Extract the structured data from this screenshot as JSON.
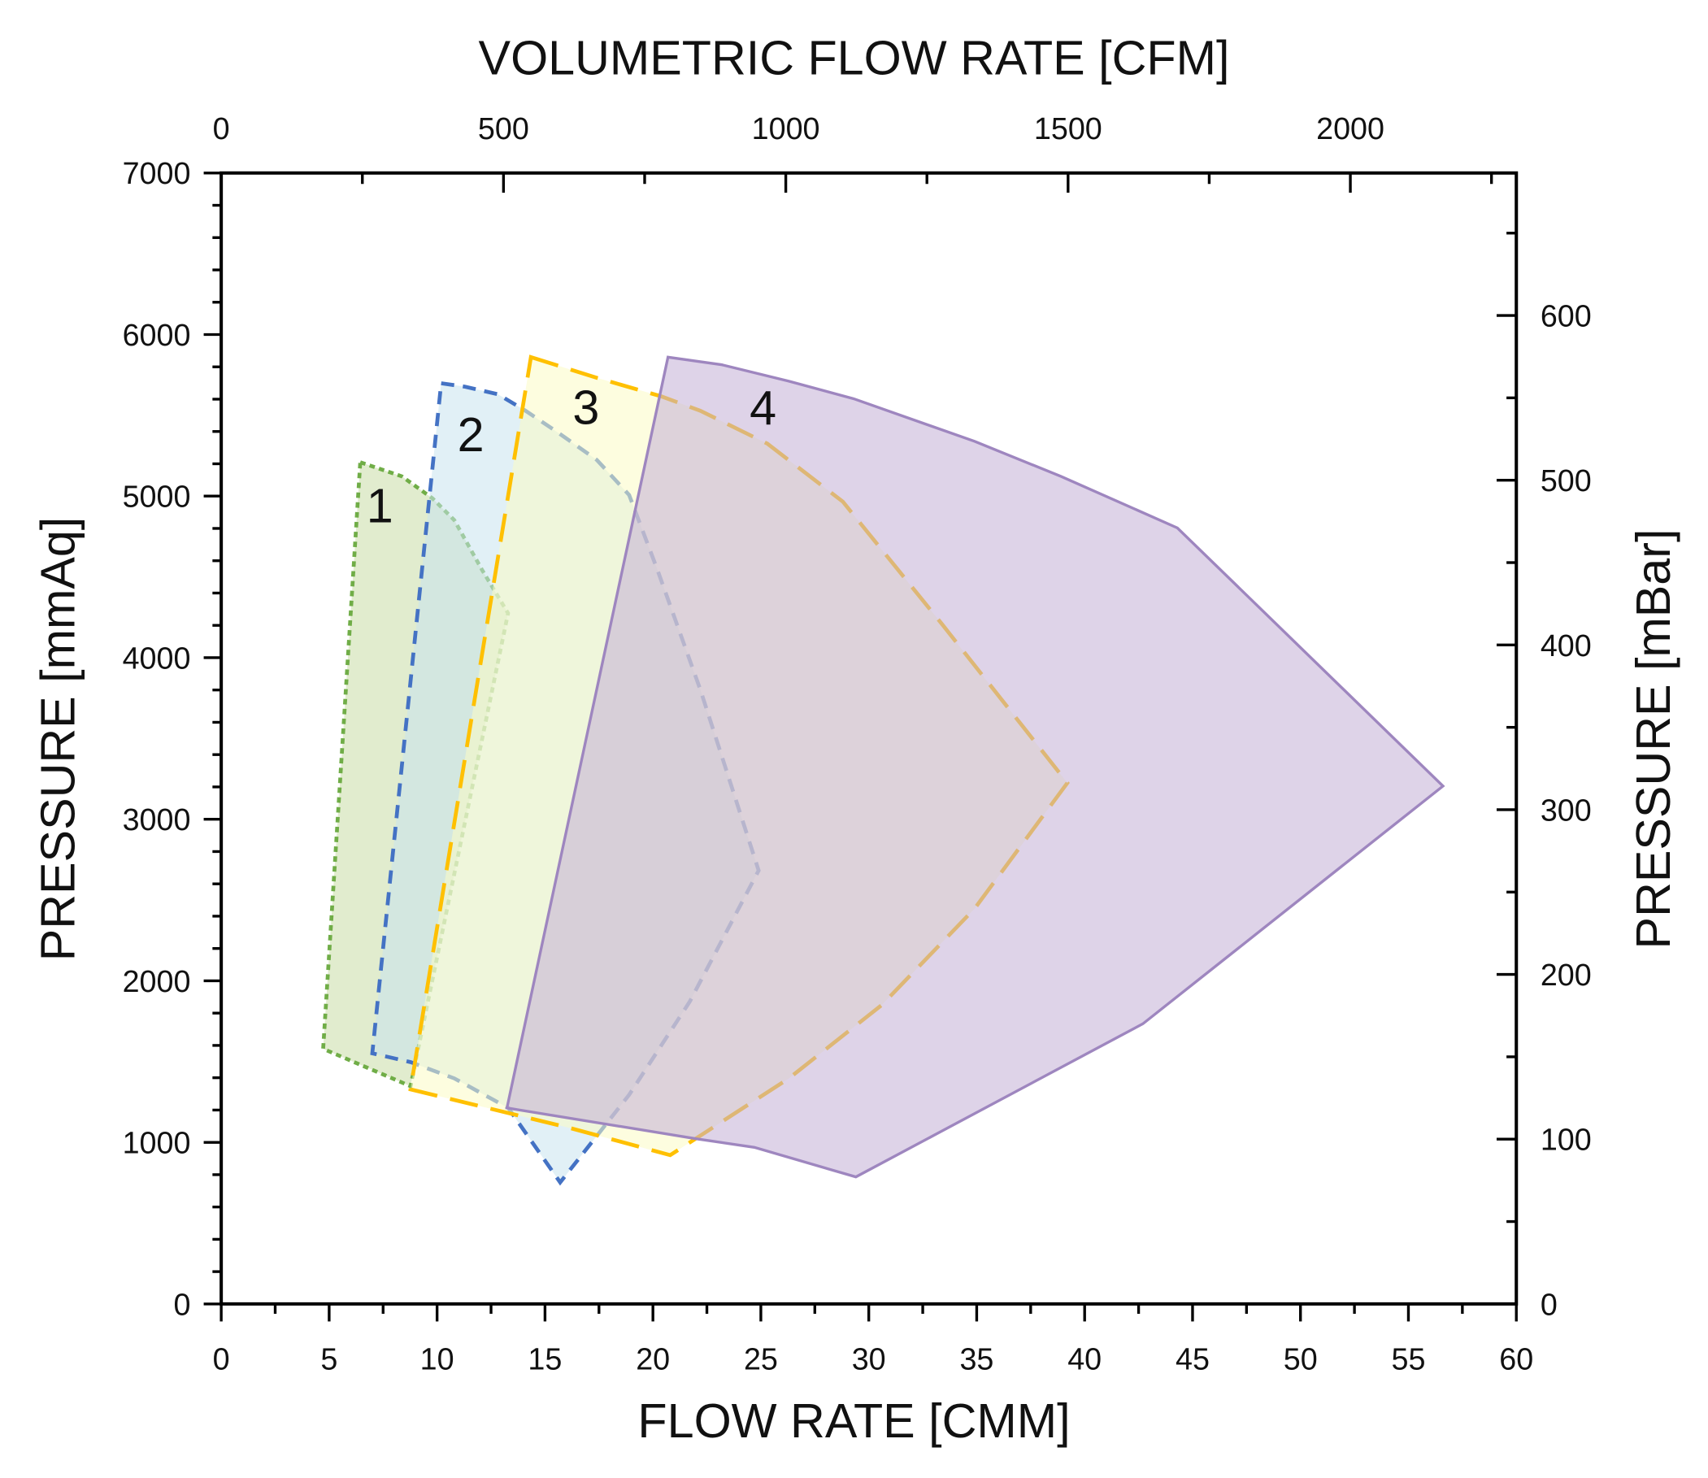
{
  "chart_data": {
    "type": "area",
    "title": "",
    "xlabel": "FLOW RATE [CMM]",
    "ylabel": "PRESSURE [mmAq]",
    "x2label": "VOLUMETRIC FLOW RATE [CFM]",
    "y2label": "PRESSURE [mBar]",
    "xlim": [
      0,
      60
    ],
    "ylim": [
      0,
      7000
    ],
    "x2lim": [
      0,
      2294
    ],
    "y2lim": [
      0,
      686.5
    ],
    "xticks": [
      "0",
      "5",
      "10",
      "15",
      "20",
      "25",
      "30",
      "35",
      "40",
      "45",
      "50",
      "55",
      "60"
    ],
    "yticks": [
      "0",
      "1000",
      "2000",
      "3000",
      "4000",
      "5000",
      "6000",
      "7000"
    ],
    "x2ticks": [
      "0",
      "500",
      "1000",
      "1500",
      "2000"
    ],
    "y2ticks": [
      "0",
      "100",
      "200",
      "300",
      "400",
      "500",
      "600"
    ],
    "grid": false,
    "series": [
      {
        "name": "1",
        "stroke": "#70ad47",
        "fill": "#c9dca6",
        "dash": "dotted",
        "points": [
          [
            6.44,
            5210
          ],
          [
            8.37,
            5122
          ],
          [
            9.79,
            4986
          ],
          [
            10.8,
            4851
          ],
          [
            12.07,
            4546
          ],
          [
            13.29,
            4275
          ],
          [
            8.77,
            1348
          ],
          [
            4.72,
            1579
          ]
        ],
        "label_at": [
          7.35,
          4939
        ]
      },
      {
        "name": "2",
        "stroke": "#4472c4",
        "fill": "#c9e4ee",
        "dash": "short",
        "points": [
          [
            10.19,
            5698
          ],
          [
            11.3,
            5677
          ],
          [
            12.83,
            5630
          ],
          [
            14.1,
            5528
          ],
          [
            15.6,
            5393
          ],
          [
            17.4,
            5224
          ],
          [
            18.9,
            5007
          ],
          [
            20.2,
            4546
          ],
          [
            22.2,
            3801
          ],
          [
            24.9,
            2683
          ],
          [
            21.7,
            1870
          ],
          [
            18.9,
            1294
          ],
          [
            15.7,
            752
          ],
          [
            13.3,
            1213
          ],
          [
            10.8,
            1396
          ],
          [
            8.77,
            1497
          ],
          [
            7.0,
            1551
          ]
        ],
        "label_at": [
          11.56,
          5379
        ]
      },
      {
        "name": "3",
        "stroke": "#ffc000",
        "fill": "#fbfbc4",
        "dash": "long",
        "points": [
          [
            14.35,
            5860
          ],
          [
            17.4,
            5732
          ],
          [
            20.4,
            5617
          ],
          [
            22.2,
            5528
          ],
          [
            25.3,
            5325
          ],
          [
            28.8,
            4966
          ],
          [
            33.4,
            4207
          ],
          [
            39.2,
            3225
          ],
          [
            34.9,
            2446
          ],
          [
            30.6,
            1850
          ],
          [
            26.3,
            1396
          ],
          [
            20.8,
            921
          ],
          [
            16.1,
            1091
          ],
          [
            8.77,
            1328
          ]
        ],
        "label_at": [
          16.9,
          5549
        ]
      },
      {
        "name": "4",
        "stroke": "#9e86bf",
        "fill": "#c2afd6",
        "dash": "solid",
        "points": [
          [
            20.7,
            5860
          ],
          [
            23.2,
            5813
          ],
          [
            26.3,
            5711
          ],
          [
            29.3,
            5603
          ],
          [
            34.9,
            5339
          ],
          [
            38.9,
            5122
          ],
          [
            44.3,
            4803
          ],
          [
            56.6,
            3205
          ],
          [
            42.7,
            1734
          ],
          [
            29.4,
            786
          ],
          [
            24.7,
            969
          ],
          [
            21.96,
            1023
          ],
          [
            13.24,
            1213
          ]
        ],
        "label_at": [
          25.1,
          5542
        ]
      }
    ]
  }
}
